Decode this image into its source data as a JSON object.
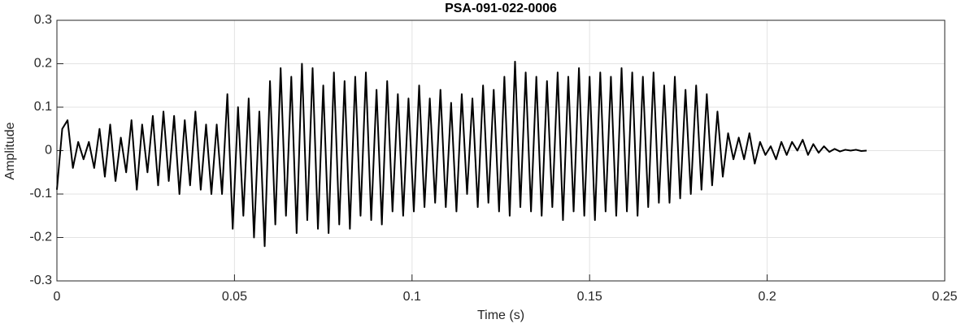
{
  "chart_data": {
    "type": "line",
    "title": "PSA-091-022-0006",
    "xlabel": "Time (s)",
    "ylabel": "Amplitude",
    "x": [
      0,
      0.0015,
      0.003,
      0.0045,
      0.006,
      0.0075,
      0.009,
      0.0105,
      0.012,
      0.0135,
      0.015,
      0.0165,
      0.018,
      0.0195,
      0.021,
      0.0225,
      0.024,
      0.0255,
      0.027,
      0.0285,
      0.03,
      0.0315,
      0.033,
      0.0345,
      0.036,
      0.0375,
      0.039,
      0.0405,
      0.042,
      0.0435,
      0.045,
      0.0465,
      0.048,
      0.0495,
      0.051,
      0.0525,
      0.054,
      0.0555,
      0.057,
      0.0585,
      0.06,
      0.0615,
      0.063,
      0.0645,
      0.066,
      0.0675,
      0.069,
      0.0705,
      0.072,
      0.0735,
      0.075,
      0.0765,
      0.078,
      0.0795,
      0.081,
      0.0825,
      0.084,
      0.0855,
      0.087,
      0.0885,
      0.09,
      0.0915,
      0.093,
      0.0945,
      0.096,
      0.0975,
      0.099,
      0.1005,
      0.102,
      0.1035,
      0.105,
      0.1065,
      0.108,
      0.1095,
      0.111,
      0.1125,
      0.114,
      0.1155,
      0.117,
      0.1185,
      0.12,
      0.1215,
      0.123,
      0.1245,
      0.126,
      0.1275,
      0.129,
      0.1305,
      0.132,
      0.1335,
      0.135,
      0.1365,
      0.138,
      0.1395,
      0.141,
      0.1425,
      0.144,
      0.1455,
      0.147,
      0.1485,
      0.15,
      0.1515,
      0.153,
      0.1545,
      0.156,
      0.1575,
      0.159,
      0.1605,
      0.162,
      0.1635,
      0.165,
      0.1665,
      0.168,
      0.1695,
      0.171,
      0.1725,
      0.174,
      0.1755,
      0.177,
      0.1785,
      0.18,
      0.1815,
      0.183,
      0.1845,
      0.186,
      0.1875,
      0.189,
      0.1905,
      0.192,
      0.1935,
      0.195,
      0.1965,
      0.198,
      0.1995,
      0.201,
      0.2025,
      0.204,
      0.2055,
      0.207,
      0.2085,
      0.21,
      0.2115,
      0.213,
      0.2145,
      0.216,
      0.2175,
      0.219,
      0.2205,
      0.222,
      0.2235,
      0.225,
      0.2265,
      0.228
    ],
    "values": [
      -0.09,
      0.05,
      0.07,
      -0.04,
      0.02,
      -0.02,
      0.02,
      -0.04,
      0.05,
      -0.06,
      0.06,
      -0.07,
      0.03,
      -0.05,
      0.07,
      -0.09,
      0.06,
      -0.05,
      0.08,
      -0.08,
      0.09,
      -0.07,
      0.08,
      -0.1,
      0.07,
      -0.08,
      0.09,
      -0.09,
      0.06,
      -0.1,
      0.06,
      -0.1,
      0.13,
      -0.18,
      0.1,
      -0.15,
      0.12,
      -0.2,
      0.09,
      -0.22,
      0.16,
      -0.17,
      0.19,
      -0.15,
      0.17,
      -0.19,
      0.2,
      -0.16,
      0.19,
      -0.18,
      0.15,
      -0.19,
      0.18,
      -0.17,
      0.16,
      -0.18,
      0.17,
      -0.15,
      0.18,
      -0.16,
      0.14,
      -0.17,
      0.16,
      -0.14,
      0.13,
      -0.15,
      0.12,
      -0.14,
      0.15,
      -0.13,
      0.12,
      -0.12,
      0.14,
      -0.13,
      0.11,
      -0.14,
      0.13,
      -0.1,
      0.12,
      -0.13,
      0.15,
      -0.12,
      0.14,
      -0.14,
      0.17,
      -0.15,
      0.205,
      -0.13,
      0.18,
      -0.14,
      0.17,
      -0.15,
      0.16,
      -0.13,
      0.18,
      -0.16,
      0.17,
      -0.14,
      0.19,
      -0.15,
      0.17,
      -0.16,
      0.18,
      -0.14,
      0.17,
      -0.15,
      0.19,
      -0.14,
      0.18,
      -0.15,
      0.17,
      -0.13,
      0.18,
      -0.12,
      0.15,
      -0.12,
      0.17,
      -0.11,
      0.14,
      -0.1,
      0.15,
      -0.09,
      0.13,
      -0.08,
      0.09,
      -0.06,
      0.04,
      -0.02,
      0.03,
      -0.02,
      0.04,
      -0.03,
      0.02,
      -0.01,
      0.01,
      -0.02,
      0.02,
      -0.01,
      0.02,
      0.0,
      0.025,
      -0.01,
      0.015,
      -0.005,
      0.01,
      -0.003,
      0.004,
      -0.002,
      0.002,
      0.0,
      0.002,
      -0.001,
      0.0
    ],
    "color": "#000000",
    "xlim": [
      0,
      0.25
    ],
    "xticks": [
      0,
      0.05,
      0.1,
      0.15,
      0.2,
      0.25
    ],
    "ylim": [
      -0.3,
      0.3
    ],
    "yticks": [
      -0.3,
      -0.2,
      -0.1,
      0,
      0.1,
      0.2,
      0.3
    ],
    "grid": true
  }
}
